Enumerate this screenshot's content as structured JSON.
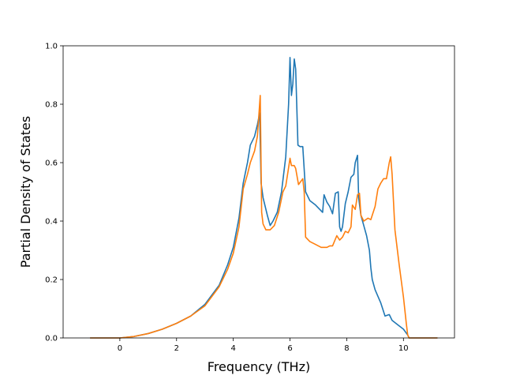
{
  "chart_data": {
    "type": "line",
    "title": "",
    "xlabel": "Frequency (THz)",
    "ylabel": "Partial Density of States",
    "xlim": [
      -2.0,
      11.8
    ],
    "ylim": [
      0.0,
      1.0
    ],
    "xticks": [
      0,
      2,
      4,
      6,
      8,
      10
    ],
    "yticks": [
      0.0,
      0.2,
      0.4,
      0.6,
      0.8,
      1.0
    ],
    "xtick_labels": [
      "0",
      "2",
      "4",
      "6",
      "8",
      "10"
    ],
    "ytick_labels": [
      "0.0",
      "0.2",
      "0.4",
      "0.6",
      "0.8",
      "1.0"
    ],
    "grid": false,
    "legend": "none",
    "series": [
      {
        "color": "#1f77b4",
        "points": [
          [
            -1.05,
            0
          ],
          [
            0,
            0
          ],
          [
            0.5,
            0.005
          ],
          [
            1.0,
            0.015
          ],
          [
            1.5,
            0.03
          ],
          [
            2.0,
            0.05
          ],
          [
            2.5,
            0.075
          ],
          [
            3.0,
            0.115
          ],
          [
            3.5,
            0.18
          ],
          [
            3.8,
            0.25
          ],
          [
            4.0,
            0.31
          ],
          [
            4.2,
            0.41
          ],
          [
            4.35,
            0.53
          ],
          [
            4.5,
            0.6
          ],
          [
            4.6,
            0.66
          ],
          [
            4.75,
            0.69
          ],
          [
            4.85,
            0.73
          ],
          [
            4.93,
            0.77
          ],
          [
            4.98,
            0.53
          ],
          [
            5.05,
            0.48
          ],
          [
            5.2,
            0.42
          ],
          [
            5.3,
            0.385
          ],
          [
            5.4,
            0.4
          ],
          [
            5.55,
            0.43
          ],
          [
            5.7,
            0.5
          ],
          [
            5.85,
            0.62
          ],
          [
            5.95,
            0.8
          ],
          [
            6.0,
            0.96
          ],
          [
            6.05,
            0.83
          ],
          [
            6.1,
            0.87
          ],
          [
            6.15,
            0.955
          ],
          [
            6.2,
            0.92
          ],
          [
            6.28,
            0.66
          ],
          [
            6.35,
            0.655
          ],
          [
            6.45,
            0.655
          ],
          [
            6.55,
            0.5
          ],
          [
            6.7,
            0.47
          ],
          [
            6.9,
            0.455
          ],
          [
            7.15,
            0.43
          ],
          [
            7.2,
            0.49
          ],
          [
            7.3,
            0.465
          ],
          [
            7.4,
            0.45
          ],
          [
            7.5,
            0.425
          ],
          [
            7.6,
            0.495
          ],
          [
            7.7,
            0.5
          ],
          [
            7.75,
            0.38
          ],
          [
            7.8,
            0.365
          ],
          [
            7.85,
            0.38
          ],
          [
            7.95,
            0.46
          ],
          [
            8.05,
            0.5
          ],
          [
            8.15,
            0.55
          ],
          [
            8.25,
            0.56
          ],
          [
            8.3,
            0.6
          ],
          [
            8.38,
            0.625
          ],
          [
            8.42,
            0.48
          ],
          [
            8.5,
            0.42
          ],
          [
            8.6,
            0.385
          ],
          [
            8.7,
            0.35
          ],
          [
            8.8,
            0.3
          ],
          [
            8.85,
            0.24
          ],
          [
            8.9,
            0.2
          ],
          [
            9.0,
            0.165
          ],
          [
            9.2,
            0.12
          ],
          [
            9.35,
            0.075
          ],
          [
            9.5,
            0.08
          ],
          [
            9.6,
            0.06
          ],
          [
            9.8,
            0.045
          ],
          [
            10.0,
            0.03
          ],
          [
            10.15,
            0.01
          ],
          [
            10.2,
            0
          ],
          [
            11.2,
            0
          ]
        ]
      },
      {
        "color": "#ff7f0e",
        "points": [
          [
            -1.05,
            0
          ],
          [
            0,
            0
          ],
          [
            0.5,
            0.005
          ],
          [
            1.0,
            0.015
          ],
          [
            1.5,
            0.03
          ],
          [
            2.0,
            0.05
          ],
          [
            2.5,
            0.075
          ],
          [
            3.0,
            0.11
          ],
          [
            3.5,
            0.175
          ],
          [
            3.8,
            0.235
          ],
          [
            4.0,
            0.29
          ],
          [
            4.2,
            0.38
          ],
          [
            4.35,
            0.51
          ],
          [
            4.5,
            0.56
          ],
          [
            4.6,
            0.6
          ],
          [
            4.75,
            0.64
          ],
          [
            4.85,
            0.69
          ],
          [
            4.95,
            0.83
          ],
          [
            5.0,
            0.43
          ],
          [
            5.05,
            0.39
          ],
          [
            5.15,
            0.37
          ],
          [
            5.3,
            0.37
          ],
          [
            5.45,
            0.385
          ],
          [
            5.6,
            0.43
          ],
          [
            5.75,
            0.5
          ],
          [
            5.85,
            0.52
          ],
          [
            5.93,
            0.57
          ],
          [
            6.0,
            0.615
          ],
          [
            6.05,
            0.59
          ],
          [
            6.15,
            0.59
          ],
          [
            6.2,
            0.58
          ],
          [
            6.3,
            0.525
          ],
          [
            6.45,
            0.545
          ],
          [
            6.5,
            0.5
          ],
          [
            6.55,
            0.345
          ],
          [
            6.7,
            0.33
          ],
          [
            6.9,
            0.32
          ],
          [
            7.1,
            0.31
          ],
          [
            7.3,
            0.31
          ],
          [
            7.4,
            0.315
          ],
          [
            7.5,
            0.315
          ],
          [
            7.65,
            0.35
          ],
          [
            7.75,
            0.335
          ],
          [
            7.85,
            0.345
          ],
          [
            7.95,
            0.365
          ],
          [
            8.05,
            0.36
          ],
          [
            8.15,
            0.38
          ],
          [
            8.2,
            0.455
          ],
          [
            8.3,
            0.44
          ],
          [
            8.38,
            0.49
          ],
          [
            8.45,
            0.495
          ],
          [
            8.5,
            0.42
          ],
          [
            8.6,
            0.4
          ],
          [
            8.75,
            0.41
          ],
          [
            8.85,
            0.405
          ],
          [
            9.0,
            0.45
          ],
          [
            9.1,
            0.51
          ],
          [
            9.2,
            0.53
          ],
          [
            9.3,
            0.545
          ],
          [
            9.4,
            0.545
          ],
          [
            9.5,
            0.6
          ],
          [
            9.55,
            0.62
          ],
          [
            9.6,
            0.56
          ],
          [
            9.7,
            0.37
          ],
          [
            9.85,
            0.25
          ],
          [
            10.0,
            0.14
          ],
          [
            10.1,
            0.05
          ],
          [
            10.15,
            0.01
          ],
          [
            10.2,
            0
          ],
          [
            11.2,
            0
          ]
        ]
      }
    ]
  }
}
